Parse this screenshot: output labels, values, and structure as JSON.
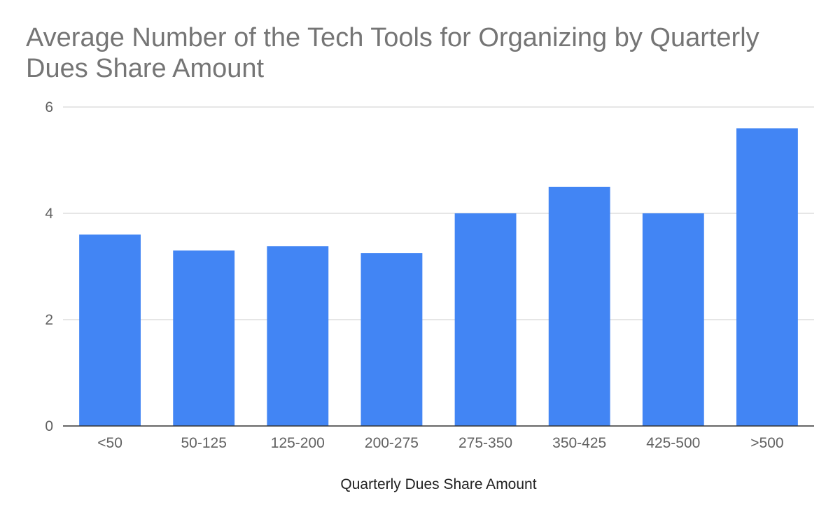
{
  "chart_data": {
    "type": "bar",
    "title": "Average Number of the Tech Tools for Organizing by Quarterly Dues Share Amount",
    "xlabel": "Quarterly Dues Share Amount",
    "ylabel": "",
    "categories": [
      "<50",
      "50-125",
      "125-200",
      "200-275",
      "275-350",
      "350-425",
      "425-500",
      ">500"
    ],
    "values": [
      3.6,
      3.3,
      3.38,
      3.25,
      4.0,
      4.5,
      4.0,
      5.6
    ],
    "ylim": [
      0,
      6
    ],
    "yticks": [
      "0",
      "2",
      "4",
      "6"
    ],
    "grid": true,
    "legend": "none",
    "bar_color": "#4285f4"
  }
}
